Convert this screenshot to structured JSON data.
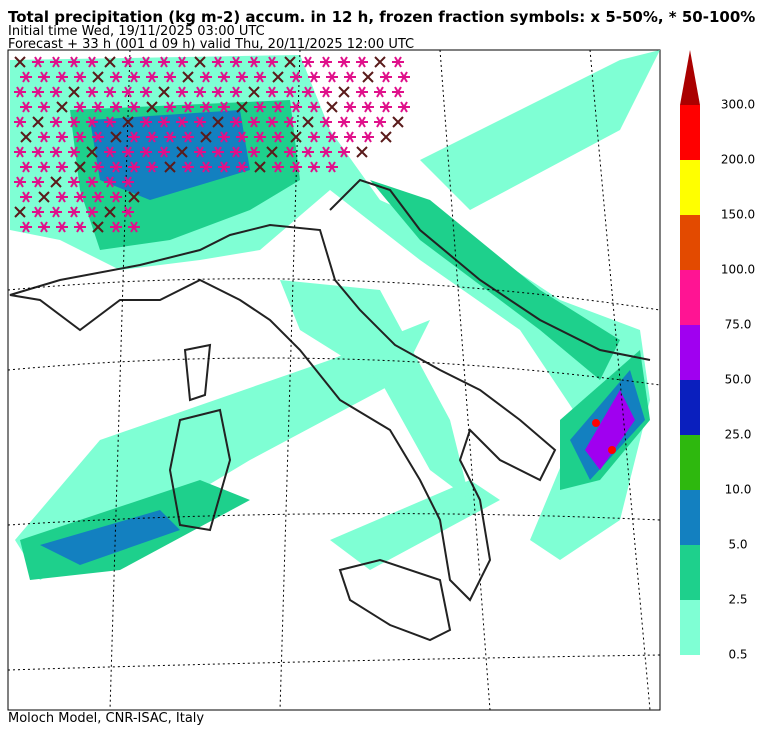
{
  "header": {
    "title": "Total precipitation (kg m-2) accum. in 12 h, frozen fraction symbols: x 5-50%, * 50-100%",
    "initial_time": "Initial time  Wed, 19/11/2025  03:00 UTC",
    "forecast": "Forecast  +  33 h  (001 d 09 h)  valid Thu, 20/11/2025 12:00 UTC"
  },
  "legend": {
    "labels": [
      "0.5",
      "2.5",
      "5.0",
      "10.0",
      "25.0",
      "50.0",
      "75.0",
      "100.0",
      "150.0",
      "200.0",
      "300.0"
    ],
    "colors": [
      "#7fffd4",
      "#1ed08c",
      "#1380c0",
      "#2eb80e",
      "#0a1fbe",
      "#a000f0",
      "#ff1493",
      "#e34a00",
      "#ffff00",
      "#ff0000"
    ],
    "extend_color": "#aa0000"
  },
  "footer": "Moloch Model, CNR-ISAC, Italy"
}
